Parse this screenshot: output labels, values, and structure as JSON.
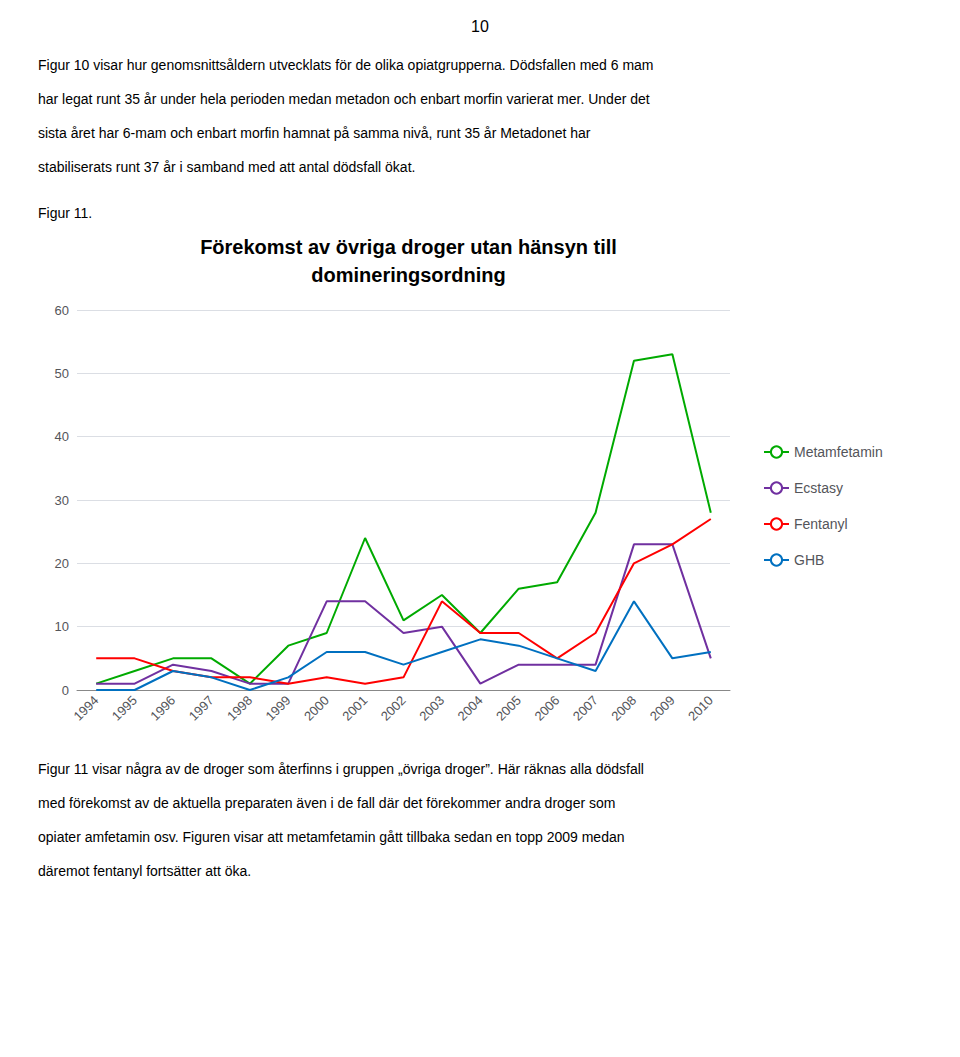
{
  "page_number": "10",
  "text_above": [
    "Figur 10 visar hur genomsnittsåldern utvecklats för de olika opiatgrupperna. Dödsfallen med 6 mam",
    "har legat runt 35 år under hela perioden medan metadon och enbart morfin varierat mer. Under det",
    "sista året har 6-mam och enbart morfin hamnat på samma nivå, runt 35 år Metadonet har",
    "stabiliserats runt 37 år i samband med att antal dödsfall ökat."
  ],
  "figure_label": "Figur 11.",
  "text_below": [
    "Figur 11 visar några av de droger som återfinns i gruppen „övriga droger”. Här räknas alla dödsfall",
    "med förekomst av de aktuella preparaten även i de fall där det förekommer andra droger som",
    "opiater amfetamin osv. Figuren visar att metamfetamin gått tillbaka sedan en topp 2009 medan",
    "däremot fentanyl fortsätter att öka."
  ],
  "chart_data": {
    "type": "line",
    "title": "Förekomst av övriga droger utan hänsyn till\ndomineringsordning",
    "categories": [
      "1994",
      "1995",
      "1996",
      "1997",
      "1998",
      "1999",
      "2000",
      "2001",
      "2002",
      "2003",
      "2004",
      "2005",
      "2006",
      "2007",
      "2008",
      "2009",
      "2010"
    ],
    "series": [
      {
        "name": "Metamfetamin",
        "color": "#00AA00",
        "values": [
          1,
          3,
          5,
          5,
          1,
          7,
          9,
          24,
          11,
          15,
          9,
          16,
          17,
          28,
          52,
          53,
          28
        ]
      },
      {
        "name": "Ecstasy",
        "color": "#7030A0",
        "values": [
          1,
          1,
          4,
          3,
          1,
          1,
          14,
          14,
          9,
          10,
          1,
          4,
          4,
          4,
          23,
          23,
          5
        ]
      },
      {
        "name": "Fentanyl",
        "color": "#FF0000",
        "values": [
          5,
          5,
          3,
          2,
          2,
          1,
          2,
          1,
          2,
          14,
          9,
          9,
          5,
          9,
          20,
          23,
          27
        ]
      },
      {
        "name": "GHB",
        "color": "#0070C0",
        "values": [
          0,
          0,
          3,
          2,
          0,
          2,
          6,
          6,
          4,
          6,
          8,
          7,
          5,
          3,
          14,
          5,
          6
        ]
      }
    ],
    "ylim": [
      0,
      60
    ],
    "yticks": [
      0,
      10,
      20,
      30,
      40,
      50,
      60
    ],
    "grid": true,
    "legend": "right"
  }
}
